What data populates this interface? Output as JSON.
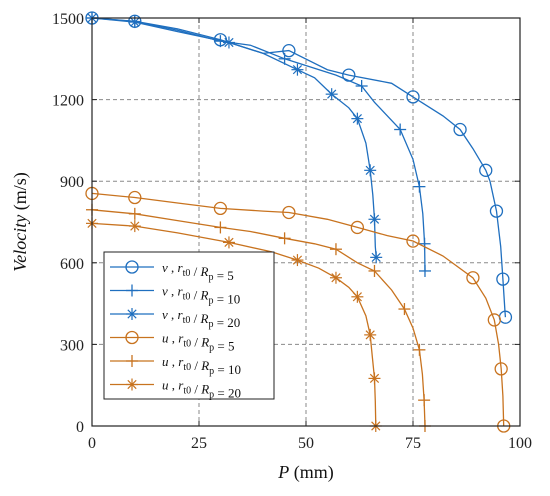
{
  "chart_data": {
    "type": "line",
    "xlabel": {
      "italic": "P",
      "unit": " (mm)"
    },
    "ylabel": {
      "italic": "Velocity",
      "unit": " (m/s)"
    },
    "xlim": [
      0,
      100
    ],
    "ylim": [
      0,
      1500
    ],
    "xticks": [
      0,
      25,
      50,
      75,
      100
    ],
    "yticks": [
      0,
      300,
      600,
      900,
      1200,
      1500
    ],
    "grid": true,
    "legend_position": "bottom-left",
    "colors": {
      "v": "#1f6fbf",
      "u": "#c8731f"
    },
    "series": [
      {
        "name": "v , r_t0 / R_p = 5",
        "var": "v",
        "ratio": "5",
        "marker": "circle",
        "color": "#1f6fbf",
        "points": [
          [
            0,
            1500
          ],
          [
            10,
            1488
          ],
          [
            20,
            1460
          ],
          [
            30,
            1420
          ],
          [
            40,
            1370
          ],
          [
            46,
            1380
          ],
          [
            55,
            1310
          ],
          [
            60,
            1290
          ],
          [
            70,
            1260
          ],
          [
            75,
            1210
          ],
          [
            82,
            1140
          ],
          [
            86,
            1090
          ],
          [
            89,
            1020
          ],
          [
            92,
            940
          ],
          [
            93,
            900
          ],
          [
            94.5,
            790
          ],
          [
            95.5,
            660
          ],
          [
            96,
            540
          ],
          [
            96.5,
            420
          ],
          [
            96.6,
            400
          ]
        ]
      },
      {
        "name": "v , r_t0 / R_p = 10",
        "var": "v",
        "ratio": "10",
        "marker": "plus",
        "color": "#1f6fbf",
        "points": [
          [
            0,
            1500
          ],
          [
            10,
            1487
          ],
          [
            20,
            1455
          ],
          [
            30,
            1415
          ],
          [
            37,
            1400
          ],
          [
            45,
            1350
          ],
          [
            57,
            1290
          ],
          [
            63,
            1250
          ],
          [
            66,
            1190
          ],
          [
            72,
            1090
          ],
          [
            75,
            980
          ],
          [
            76.5,
            880
          ],
          [
            77.3,
            780
          ],
          [
            77.7,
            670
          ],
          [
            77.8,
            570
          ]
        ]
      },
      {
        "name": "v , r_t0 / R_p = 20",
        "var": "v",
        "ratio": "20",
        "marker": "asterisk",
        "color": "#1f6fbf",
        "points": [
          [
            0,
            1500
          ],
          [
            10,
            1485
          ],
          [
            20,
            1450
          ],
          [
            32,
            1410
          ],
          [
            40,
            1370
          ],
          [
            48,
            1310
          ],
          [
            52,
            1280
          ],
          [
            56,
            1220
          ],
          [
            60,
            1170
          ],
          [
            62,
            1130
          ],
          [
            64,
            1040
          ],
          [
            65,
            940
          ],
          [
            65.6,
            850
          ],
          [
            66,
            760
          ],
          [
            66.2,
            660
          ],
          [
            66.4,
            620
          ]
        ]
      },
      {
        "name": "u , r_t0 / R_p = 5",
        "var": "u",
        "ratio": "5",
        "marker": "circle",
        "color": "#c8731f",
        "points": [
          [
            0,
            855
          ],
          [
            10,
            840
          ],
          [
            20,
            820
          ],
          [
            30,
            800
          ],
          [
            40,
            790
          ],
          [
            46,
            785
          ],
          [
            55,
            760
          ],
          [
            62,
            730
          ],
          [
            69,
            700
          ],
          [
            75,
            680
          ],
          [
            82,
            625
          ],
          [
            89,
            545
          ],
          [
            92,
            470
          ],
          [
            94,
            390
          ],
          [
            95,
            300
          ],
          [
            95.6,
            210
          ],
          [
            96,
            110
          ],
          [
            96.2,
            0
          ]
        ]
      },
      {
        "name": "u , r_t0 / R_p = 10",
        "var": "u",
        "ratio": "10",
        "marker": "plus",
        "color": "#c8731f",
        "points": [
          [
            0,
            795
          ],
          [
            10,
            780
          ],
          [
            20,
            755
          ],
          [
            30,
            730
          ],
          [
            37,
            715
          ],
          [
            45,
            690
          ],
          [
            52,
            670
          ],
          [
            57,
            650
          ],
          [
            62,
            600
          ],
          [
            66,
            570
          ],
          [
            70,
            500
          ],
          [
            73,
            430
          ],
          [
            75,
            360
          ],
          [
            76.5,
            280
          ],
          [
            77.2,
            190
          ],
          [
            77.6,
            95
          ],
          [
            77.8,
            0
          ]
        ]
      },
      {
        "name": "u , r_t0 / R_p = 20",
        "var": "u",
        "ratio": "20",
        "marker": "asterisk",
        "color": "#c8731f",
        "points": [
          [
            0,
            745
          ],
          [
            10,
            735
          ],
          [
            20,
            710
          ],
          [
            32,
            675
          ],
          [
            42,
            640
          ],
          [
            48,
            610
          ],
          [
            53,
            580
          ],
          [
            57,
            545
          ],
          [
            60,
            510
          ],
          [
            62,
            475
          ],
          [
            64,
            405
          ],
          [
            65,
            335
          ],
          [
            65.5,
            255
          ],
          [
            66,
            175
          ],
          [
            66.2,
            90
          ],
          [
            66.3,
            0
          ]
        ]
      }
    ]
  }
}
